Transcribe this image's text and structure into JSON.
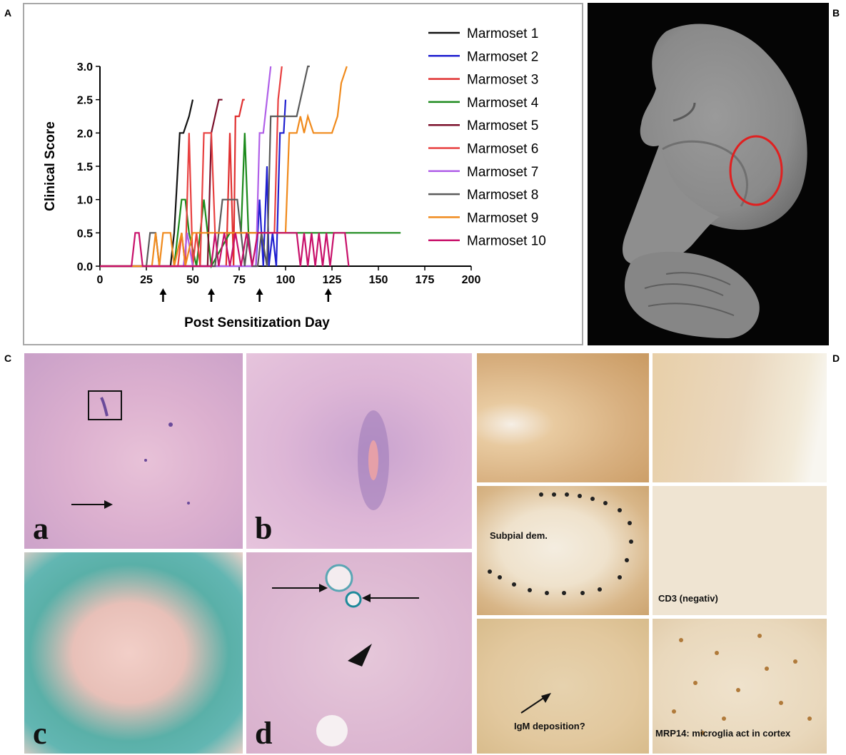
{
  "panel_letters": {
    "A": "A",
    "B": "B",
    "C": "C",
    "D": "D"
  },
  "chart_data": {
    "type": "line",
    "title": "",
    "xlabel": "Post Sensitization Day",
    "ylabel": "Clinical  Score",
    "xlim": [
      0,
      200
    ],
    "ylim": [
      0,
      3
    ],
    "xticks": [
      "0",
      "25",
      "50",
      "75",
      "100",
      "125",
      "150",
      "175",
      "200"
    ],
    "yticks": [
      "0.0",
      "0.5",
      "1.0",
      "1.5",
      "2.0",
      "2.5",
      "3.0"
    ],
    "legend_position": "right",
    "grid": false,
    "arrow_days": [
      34,
      60,
      86,
      123
    ],
    "series": [
      {
        "name": "Marmoset 1",
        "color": "#111111",
        "x": [
          0,
          38,
          40,
          43,
          45,
          48,
          50
        ],
        "y": [
          0,
          0,
          0.5,
          2,
          2,
          2.25,
          2.5
        ]
      },
      {
        "name": "Marmoset 2",
        "color": "#2020d0",
        "x": [
          0,
          84,
          86,
          88,
          90,
          91,
          93,
          95,
          97,
          99,
          100
        ],
        "y": [
          0,
          0,
          1,
          0,
          1.5,
          0,
          0.5,
          0,
          2,
          2,
          2.5
        ]
      },
      {
        "name": "Marmoset 3",
        "color": "#e03030",
        "x": [
          0,
          68,
          70,
          72,
          73,
          75,
          77,
          78
        ],
        "y": [
          0,
          0,
          2,
          0,
          2.25,
          2.25,
          2.5,
          2.5
        ]
      },
      {
        "name": "Marmoset 4",
        "color": "#1c8a1c",
        "x": [
          0,
          40,
          42,
          44,
          46,
          48,
          52,
          54,
          56,
          58,
          60,
          70,
          76,
          78,
          80,
          162
        ],
        "y": [
          0,
          0,
          0.5,
          1,
          1,
          0.5,
          0,
          0.5,
          1,
          0.5,
          0,
          0.5,
          0.5,
          2,
          0.5,
          0.5
        ]
      },
      {
        "name": "Marmoset 5",
        "color": "#7a0f2a",
        "x": [
          0,
          58,
          60,
          62,
          64,
          66
        ],
        "y": [
          0,
          0,
          2,
          2.25,
          2.5,
          2.5
        ]
      },
      {
        "name": "Marmoset 6",
        "color": "#e84040",
        "x": [
          0,
          42,
          44,
          46,
          48,
          50,
          52,
          54,
          56,
          58,
          60,
          62,
          94,
          96,
          98
        ],
        "y": [
          0,
          0,
          0.5,
          0,
          2,
          0,
          0.5,
          0,
          2,
          2,
          2,
          0.5,
          0.5,
          2.5,
          3
        ]
      },
      {
        "name": "Marmoset 7",
        "color": "#b060e8",
        "x": [
          0,
          45,
          47,
          50,
          84,
          86,
          88,
          90,
          92
        ],
        "y": [
          0,
          0,
          0.5,
          0,
          0,
          2,
          2,
          2.5,
          3
        ]
      },
      {
        "name": "Marmoset 8",
        "color": "#5a5a5a",
        "x": [
          0,
          25,
          27,
          30,
          32,
          62,
          66,
          68,
          74,
          76,
          78,
          80,
          82,
          85,
          87,
          90,
          92,
          94,
          100,
          103,
          106,
          108,
          110,
          112,
          113
        ],
        "y": [
          0,
          0,
          0.5,
          0.5,
          0,
          0,
          1,
          1,
          1,
          0.5,
          0,
          0.5,
          0,
          0,
          0.5,
          0,
          2.25,
          2.25,
          2.25,
          2.25,
          2.25,
          2.5,
          2.75,
          3,
          3
        ]
      },
      {
        "name": "Marmoset 9",
        "color": "#f08a1c",
        "x": [
          0,
          28,
          30,
          32,
          34,
          38,
          40,
          44,
          46,
          50,
          96,
          100,
          102,
          106,
          108,
          110,
          112,
          115,
          118,
          120,
          125,
          128,
          130,
          133
        ],
        "y": [
          0,
          0,
          0.5,
          0,
          0.5,
          0.5,
          0,
          0.5,
          0,
          0.5,
          0.5,
          0.5,
          2,
          2,
          2.25,
          2,
          2.25,
          2,
          2,
          2,
          2,
          2.25,
          2.75,
          3
        ]
      },
      {
        "name": "Marmoset 10",
        "color": "#c8106a",
        "x": [
          0,
          17,
          19,
          21,
          23,
          60,
          62,
          64,
          67,
          70,
          73,
          76,
          79,
          82,
          85,
          106,
          108,
          110,
          112,
          114,
          116,
          118,
          120,
          122,
          124,
          126,
          128,
          130,
          132,
          134
        ],
        "y": [
          0,
          0,
          0.5,
          0.5,
          0,
          0,
          0.5,
          0,
          0.5,
          0,
          0.5,
          0,
          0.5,
          0,
          0.5,
          0.5,
          0,
          0.5,
          0,
          0.5,
          0,
          0.5,
          0,
          0.5,
          0,
          0.5,
          0.5,
          0.5,
          0.5,
          0
        ]
      }
    ]
  },
  "panelC": {
    "tiles": {
      "a": "a",
      "b": "b",
      "c": "c",
      "d": "d"
    }
  },
  "panelD": {
    "labels": {
      "subpial": "Subpial dem.",
      "cd3": "CD3 (negativ)",
      "igm": "IgM deposition?",
      "mrp14": "MRP14: microglia act in cortex"
    }
  }
}
